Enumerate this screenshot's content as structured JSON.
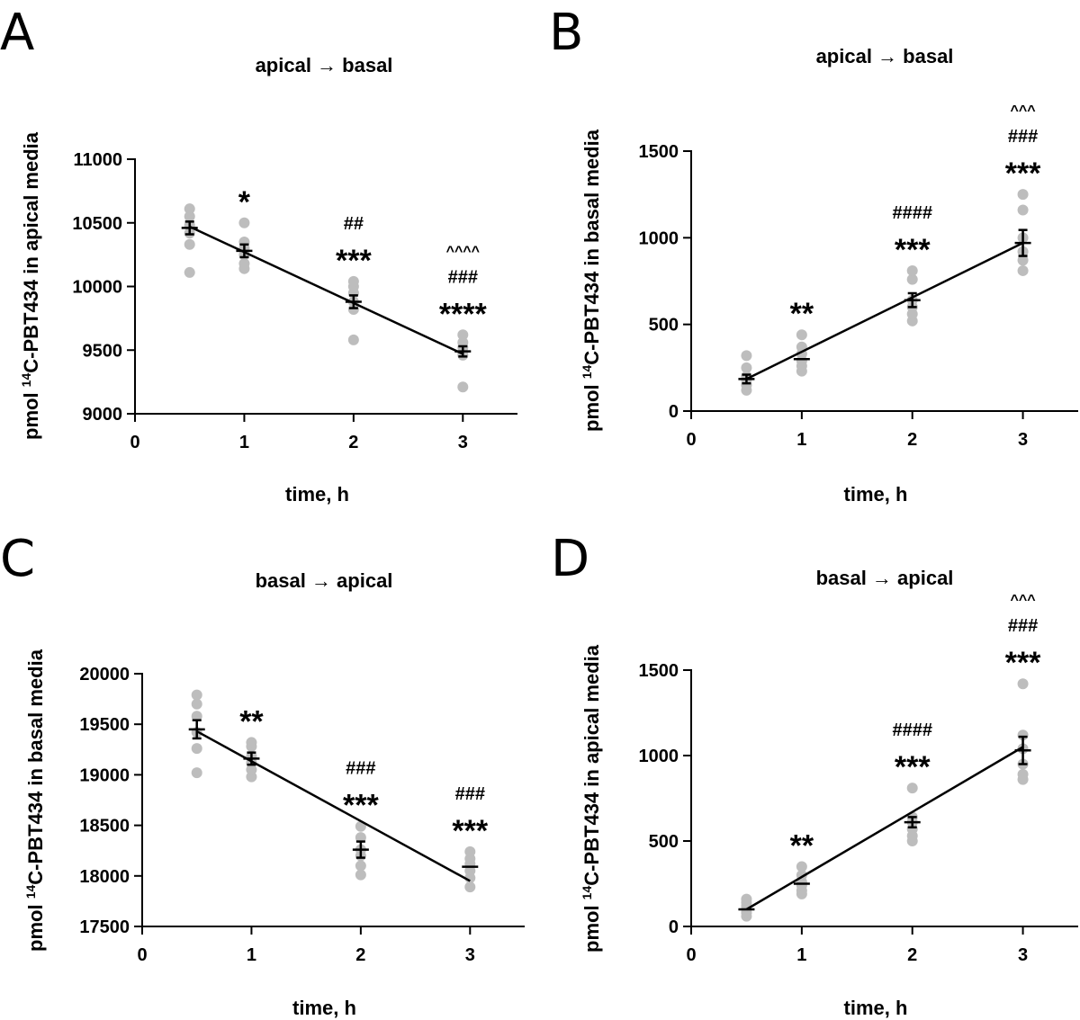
{
  "chart_data": [
    {
      "panel_label": "A",
      "type": "scatter",
      "title": "apical → basal",
      "xlabel": "time, h",
      "ylabel_parts": [
        "pmol ",
        "14",
        "C-PBT434 in apical media"
      ],
      "xlim": [
        0,
        3.5
      ],
      "ylim": [
        9000,
        11000
      ],
      "xticks": [
        0,
        1,
        2,
        3
      ],
      "yticks": [
        9000,
        9500,
        10000,
        10500,
        11000
      ],
      "x": [
        0.5,
        1,
        2,
        3
      ],
      "points": [
        [
          10110,
          10330,
          10420,
          10480,
          10550,
          10610
        ],
        [
          10140,
          10180,
          10250,
          10300,
          10350,
          10500
        ],
        [
          9580,
          9820,
          9880,
          9950,
          10000,
          10040
        ],
        [
          9210,
          9460,
          9480,
          9520,
          9560,
          9620
        ]
      ],
      "mean": [
        10460,
        10280,
        9880,
        9490
      ],
      "sem": [
        50,
        50,
        50,
        40
      ],
      "fit": [
        [
          0.5,
          10470
        ],
        [
          3,
          9470
        ]
      ],
      "annotations": [
        {
          "x": 1,
          "lines": [
            "*"
          ]
        },
        {
          "x": 2,
          "lines": [
            "##",
            "***"
          ]
        },
        {
          "x": 3,
          "lines": [
            "^^^^",
            "###",
            "****"
          ]
        }
      ]
    },
    {
      "panel_label": "B",
      "type": "scatter",
      "title": "apical → basal",
      "xlabel": "time, h",
      "ylabel_parts": [
        "pmol ",
        "14",
        "C-PBT434 in basal media"
      ],
      "xlim": [
        0,
        3.5
      ],
      "ylim": [
        0,
        1500
      ],
      "xticks": [
        0,
        1,
        2,
        3
      ],
      "yticks": [
        0,
        500,
        1000,
        1500
      ],
      "x": [
        0.5,
        1,
        2,
        3
      ],
      "points": [
        [
          120,
          150,
          180,
          200,
          250,
          320
        ],
        [
          230,
          260,
          290,
          330,
          370,
          440
        ],
        [
          520,
          560,
          600,
          640,
          760,
          810
        ],
        [
          810,
          870,
          920,
          1000,
          1160,
          1250
        ]
      ],
      "mean": [
        185,
        300,
        640,
        970
      ],
      "sem": [
        25,
        0,
        40,
        75
      ],
      "fit": [
        [
          0.5,
          185
        ],
        [
          3,
          970
        ]
      ],
      "annotations": [
        {
          "x": 1,
          "lines": [
            "**"
          ]
        },
        {
          "x": 2,
          "lines": [
            "####",
            "***"
          ]
        },
        {
          "x": 3,
          "lines": [
            "^^^",
            "###",
            "***"
          ]
        }
      ]
    },
    {
      "panel_label": "C",
      "type": "scatter",
      "title": "basal → apical",
      "xlabel": "time, h",
      "ylabel_parts": [
        "pmol ",
        "14",
        "C-PBT434 in basal media"
      ],
      "xlim": [
        0,
        3.5
      ],
      "ylim": [
        17500,
        20000
      ],
      "xticks": [
        0,
        1,
        2,
        3
      ],
      "yticks": [
        17500,
        18000,
        18500,
        19000,
        19500,
        20000
      ],
      "x": [
        0.5,
        1,
        2,
        3
      ],
      "points": [
        [
          19020,
          19260,
          19420,
          19580,
          19700,
          19790
        ],
        [
          18980,
          19050,
          19120,
          19180,
          19280,
          19320
        ],
        [
          18010,
          18100,
          18200,
          18260,
          18380,
          18490
        ],
        [
          17890,
          17980,
          18050,
          18120,
          18170,
          18240
        ]
      ],
      "mean": [
        19450,
        19160,
        18260,
        18090
      ],
      "sem": [
        90,
        60,
        80,
        0
      ],
      "fit": [
        [
          0.5,
          19430
        ],
        [
          3,
          17950
        ]
      ],
      "annotations": [
        {
          "x": 1,
          "lines": [
            "**"
          ]
        },
        {
          "x": 2,
          "lines": [
            "###",
            "***"
          ]
        },
        {
          "x": 3,
          "lines": [
            "###",
            "***"
          ]
        }
      ]
    },
    {
      "panel_label": "D",
      "type": "scatter",
      "title": "basal → apical",
      "xlabel": "time, h",
      "ylabel_parts": [
        "pmol ",
        "14",
        "C-PBT434 in apical media"
      ],
      "xlim": [
        0,
        3.5
      ],
      "ylim": [
        0,
        1500
      ],
      "xticks": [
        0,
        1,
        2,
        3
      ],
      "yticks": [
        0,
        500,
        1000,
        1500
      ],
      "x": [
        0.5,
        1,
        2,
        3
      ],
      "points": [
        [
          60,
          80,
          100,
          120,
          140,
          160
        ],
        [
          190,
          210,
          240,
          260,
          300,
          350
        ],
        [
          500,
          530,
          570,
          610,
          640,
          810
        ],
        [
          860,
          890,
          950,
          1040,
          1120,
          1420
        ]
      ],
      "mean": [
        100,
        250,
        610,
        1030
      ],
      "sem": [
        0,
        0,
        30,
        80
      ],
      "fit": [
        [
          0.5,
          100
        ],
        [
          3,
          1050
        ]
      ],
      "annotations": [
        {
          "x": 1,
          "lines": [
            "**"
          ]
        },
        {
          "x": 2,
          "lines": [
            "####",
            "***"
          ]
        },
        {
          "x": 3,
          "lines": [
            "^^^",
            "###",
            "***"
          ]
        }
      ]
    }
  ]
}
